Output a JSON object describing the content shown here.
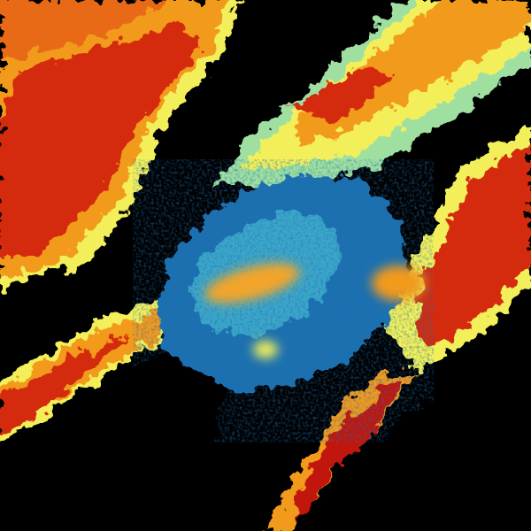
{
  "image": {
    "kind": "weather radar reflectivity scan",
    "background": "#000000",
    "palette": {
      "low": "#1f6fb0",
      "low_mid": "#3aa6c9",
      "mid": "#9fe0a0",
      "mid_high": "#f2ef5a",
      "high": "#f29a1d",
      "very_high": "#d42a0a",
      "extreme": "#b00000"
    }
  }
}
